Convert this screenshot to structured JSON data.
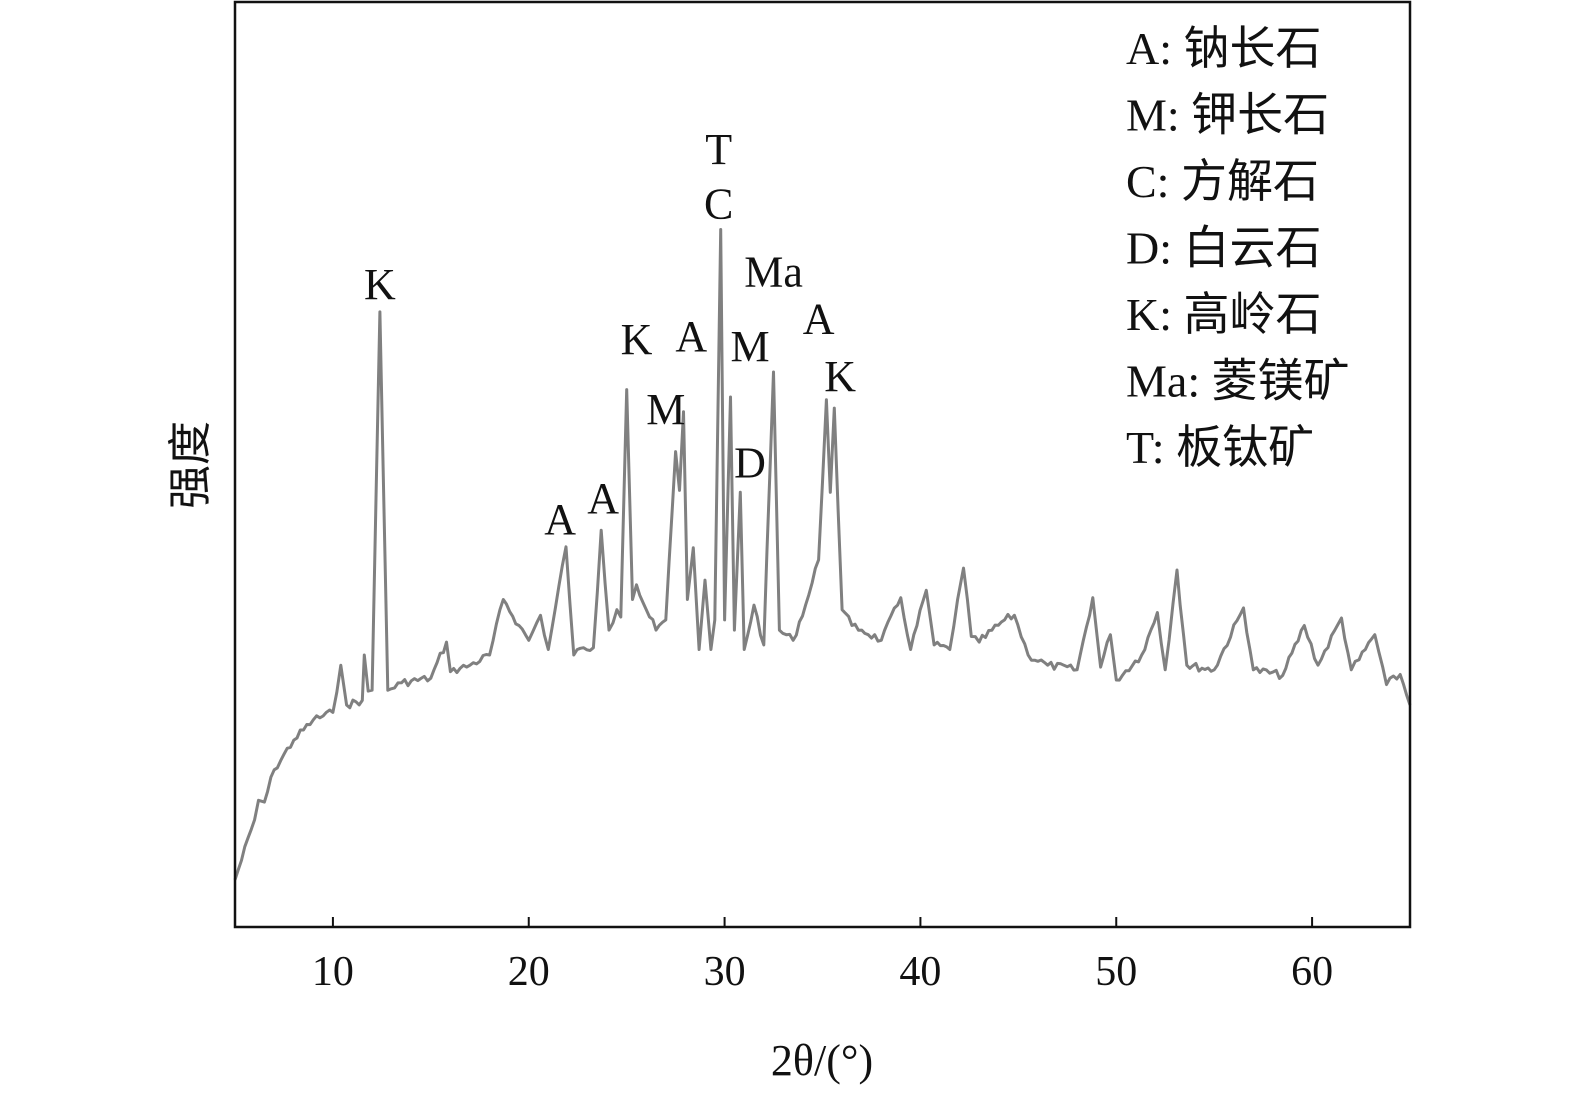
{
  "chart_data": {
    "type": "line",
    "title": "",
    "xlabel": "2θ/(°)",
    "ylabel": "强度",
    "xlim": [
      5,
      65
    ],
    "ylim": [
      0,
      100
    ],
    "y_units": "arbitrary intensity (no tick labels printed)",
    "xticks": [
      10,
      20,
      30,
      40,
      50,
      60
    ],
    "grid": false,
    "line_color": "#808080",
    "series": [
      {
        "x": [
          5,
          6,
          6.2,
          6.5,
          7,
          8,
          9,
          10,
          10.4,
          10.7,
          11.5,
          11.6,
          11.8,
          12.0,
          12.4,
          12.8,
          13.5,
          15,
          15.8,
          16,
          17,
          18,
          18.7,
          19.5,
          20,
          20.6,
          21,
          21.9,
          22.3,
          22.8,
          23.3,
          23.7,
          24.1,
          24.5,
          24.7,
          25.0,
          25.3,
          25.5,
          26,
          26.5,
          27.0,
          27.5,
          27.7,
          27.9,
          28.1,
          28.4,
          28.7,
          29.0,
          29.3,
          29.5,
          29.8,
          30.0,
          30.3,
          30.5,
          30.8,
          31.0,
          31.5,
          32,
          32.5,
          32.8,
          33.5,
          34.3,
          34.8,
          35.2,
          35.4,
          35.6,
          36.0,
          36.5,
          37,
          38,
          39.0,
          39.5,
          40.3,
          40.7,
          41.5,
          41.9,
          42.2,
          42.6,
          43,
          44.3,
          44.8,
          45.5,
          46.5,
          48,
          48.8,
          49.2,
          49.7,
          50,
          51.3,
          52.1,
          52.5,
          53.1,
          53.6,
          55,
          56.5,
          57,
          58.5,
          59.6,
          60.3,
          61.5,
          62,
          62.4,
          63.2,
          63.8,
          64.5,
          65
        ],
        "y": [
          5.1,
          11.6,
          13.7,
          13.5,
          17,
          20.2,
          22.4,
          23.2,
          28.3,
          24,
          24.5,
          29.4,
          25.5,
          25.6,
          66.5,
          25.6,
          26.4,
          26.9,
          30.8,
          27.6,
          28.3,
          29.4,
          35.4,
          32.6,
          31,
          33.7,
          30,
          41.1,
          29.4,
          30.2,
          30.2,
          42.9,
          32.1,
          34.3,
          33.5,
          58.1,
          35.4,
          37,
          34.3,
          32.1,
          33.2,
          51.4,
          47.2,
          55.7,
          35.4,
          41,
          30,
          37.5,
          30,
          33.2,
          75.4,
          33.2,
          57.3,
          32.1,
          47,
          30,
          34.8,
          30.5,
          60,
          32.1,
          31,
          35.9,
          39.7,
          57,
          47,
          56.1,
          34.3,
          32.6,
          32.1,
          31,
          35.6,
          30,
          36.4,
          30.5,
          30,
          35.4,
          38.8,
          31.4,
          30.8,
          33.2,
          33.7,
          29.4,
          28.3,
          27.8,
          35.6,
          28.1,
          31.6,
          26.7,
          29.4,
          34,
          27.8,
          38.6,
          28.3,
          27.8,
          34.5,
          27.8,
          27.2,
          32.6,
          28.3,
          33.4,
          27.8,
          28.9,
          31.6,
          26.2,
          27.3,
          24
        ]
      }
    ],
    "annotations": [
      {
        "text": "K",
        "x": 12.4,
        "y": 69.6
      },
      {
        "text": "A",
        "x": 21.6,
        "y": 44.2
      },
      {
        "text": "A",
        "x": 23.8,
        "y": 46.5
      },
      {
        "text": "K",
        "x": 25.5,
        "y": 63.7
      },
      {
        "text": "M",
        "x": 27.0,
        "y": 56.1
      },
      {
        "text": "A",
        "x": 28.3,
        "y": 64.0
      },
      {
        "text": "T",
        "x": 29.7,
        "y": 84.2
      },
      {
        "text": "C",
        "x": 29.7,
        "y": 78.3
      },
      {
        "text": "Ma",
        "x": 32.5,
        "y": 71.0
      },
      {
        "text": "M",
        "x": 31.3,
        "y": 62.9
      },
      {
        "text": "D",
        "x": 31.3,
        "y": 50.3
      },
      {
        "text": "A",
        "x": 34.8,
        "y": 65.9
      },
      {
        "text": "K",
        "x": 35.9,
        "y": 59.7
      }
    ],
    "legend_placement": "top-right",
    "legend": [
      "A: 钠长石",
      "M: 钾长石",
      "C: 方解石",
      "D: 白云石",
      "K: 高岭石",
      "Ma: 菱镁矿",
      "T: 板钛矿"
    ]
  }
}
